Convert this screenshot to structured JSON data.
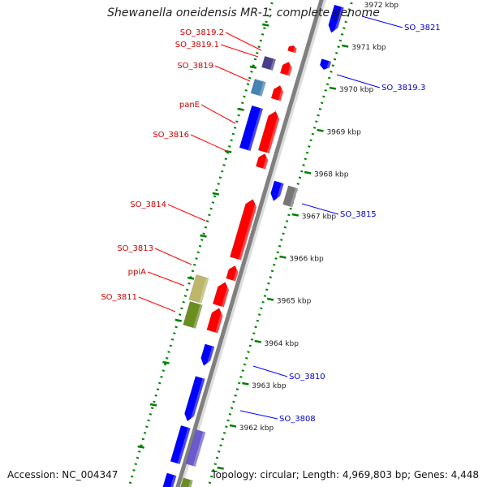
{
  "title": "Shewanella oneidensis MR-1, complete genome",
  "accession": "Accession: NC_004347",
  "topology": "Topology: circular; Length: 4,969,803 bp; Genes: 4,448",
  "colors": {
    "forward": "#ff0000",
    "reverse": "#0000ff",
    "label_forward": "#cc0000",
    "label_reverse": "#0000cc",
    "tick": "#008000",
    "backbone": "#808080",
    "olive": "#6b8e23",
    "khaki": "#bdb76b",
    "slate_blue": "#6a5acd",
    "steel_blue": "#4682b4",
    "dark_slate": "#483d8b",
    "grey": "#777777"
  },
  "kbp_ticks": [
    {
      "kbp": 3962,
      "label": "3962 kbp"
    },
    {
      "kbp": 3963,
      "label": "3963 kbp"
    },
    {
      "kbp": 3964,
      "label": "3964 kbp"
    },
    {
      "kbp": 3965,
      "label": "3965 kbp"
    },
    {
      "kbp": 3966,
      "label": "3966 kbp"
    },
    {
      "kbp": 3967,
      "label": "3967 kbp"
    },
    {
      "kbp": 3968,
      "label": "3968 kbp"
    },
    {
      "kbp": 3969,
      "label": "3969 kbp"
    },
    {
      "kbp": 3970,
      "label": "3970 kbp"
    },
    {
      "kbp": 3971,
      "label": "3971 kbp"
    },
    {
      "kbp": 3972,
      "label": "3972 kbp"
    }
  ],
  "gene_labels_left": [
    {
      "name": "SO_3819.2"
    },
    {
      "name": "SO_3819.1"
    },
    {
      "name": "SO_3819"
    },
    {
      "name": "panE"
    },
    {
      "name": "SO_3816"
    },
    {
      "name": "SO_3814"
    },
    {
      "name": "SO_3813"
    },
    {
      "name": "ppiA"
    },
    {
      "name": "SO_3811"
    }
  ],
  "gene_labels_right": [
    {
      "name": "SO_3821"
    },
    {
      "name": "SO_3819.3"
    },
    {
      "name": "SO_3815"
    },
    {
      "name": "SO_3810"
    },
    {
      "name": "SO_3808"
    }
  ]
}
